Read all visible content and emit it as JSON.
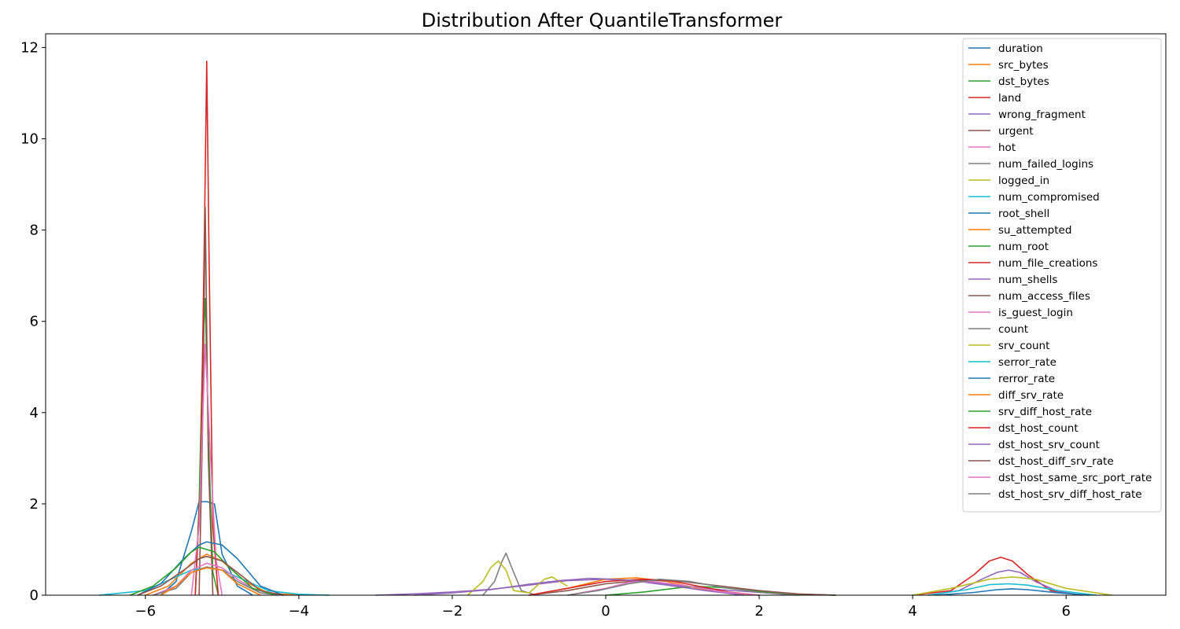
{
  "chart_data": {
    "type": "line",
    "title": "Distribution After QuantileTransformer",
    "xlabel": "",
    "ylabel": "",
    "xlim": [
      -7.3,
      7.3
    ],
    "ylim": [
      0,
      12.3
    ],
    "xticks": [
      -6,
      -4,
      -2,
      0,
      2,
      4,
      6
    ],
    "xtick_labels": [
      "−6",
      "−4",
      "−2",
      "0",
      "2",
      "4",
      "6"
    ],
    "yticks": [
      0,
      2,
      4,
      6,
      8,
      10,
      12
    ],
    "ytick_labels": [
      "0",
      "2",
      "4",
      "6",
      "8",
      "10",
      "12"
    ],
    "grid": false,
    "legend_position": "top-right",
    "series": [
      {
        "name": "duration",
        "color": "#1f77b4",
        "x": [
          -5.8,
          -5.6,
          -5.4,
          -5.3,
          -5.2,
          -5.1,
          -5.0,
          -4.8,
          -4.6
        ],
        "y": [
          0.0,
          0.3,
          1.4,
          2.05,
          2.05,
          2.0,
          0.9,
          0.2,
          0.0
        ]
      },
      {
        "name": "src_bytes",
        "color": "#ff7f0e",
        "x": [
          -6.0,
          -5.7,
          -5.4,
          -5.2,
          -5.0,
          -4.7,
          -4.4,
          -4.0
        ],
        "y": [
          0.0,
          0.2,
          0.7,
          0.9,
          0.75,
          0.3,
          0.05,
          0.0
        ]
      },
      {
        "name": "dst_bytes",
        "color": "#2ca02c",
        "x": [
          -5.35,
          -5.3,
          -5.25,
          -5.22,
          -5.18,
          -5.12,
          -5.05
        ],
        "y": [
          0.0,
          2.0,
          5.5,
          6.5,
          3.5,
          0.5,
          0.0
        ]
      },
      {
        "name": "land",
        "color": "#d62728",
        "x": [
          -5.35,
          -5.28,
          -5.23,
          -5.2,
          -5.17,
          -5.12,
          -5.05
        ],
        "y": [
          0.0,
          2.5,
          8.0,
          11.7,
          7.5,
          1.5,
          0.0
        ]
      },
      {
        "name": "wrong_fragment",
        "color": "#9467bd",
        "x": [
          -3.0,
          -2.5,
          -2.0,
          -1.5,
          -1.0,
          -0.5,
          0.0,
          0.5,
          1.0,
          1.5,
          2.0,
          2.5,
          3.0
        ],
        "y": [
          0.0,
          0.03,
          0.07,
          0.13,
          0.22,
          0.32,
          0.35,
          0.3,
          0.2,
          0.12,
          0.06,
          0.02,
          0.0
        ]
      },
      {
        "name": "urgent",
        "color": "#8c564b",
        "x": [
          -5.3,
          -5.25,
          -5.22,
          -5.18,
          -5.12
        ],
        "y": [
          0.0,
          4.0,
          8.5,
          3.0,
          0.0
        ]
      },
      {
        "name": "hot",
        "color": "#e377c2",
        "x": [
          -5.4,
          -5.3,
          -5.22,
          -5.15,
          -5.08,
          -5.0
        ],
        "y": [
          0.0,
          1.5,
          5.5,
          3.0,
          0.8,
          0.0
        ]
      },
      {
        "name": "num_failed_logins",
        "color": "#7f7f7f",
        "x": [
          -1.6,
          -1.45,
          -1.35,
          -1.3,
          -1.2,
          -1.1,
          -1.0,
          -0.9
        ],
        "y": [
          0.0,
          0.3,
          0.75,
          0.92,
          0.5,
          0.1,
          0.05,
          0.0
        ]
      },
      {
        "name": "logged_in",
        "color": "#bcbd22",
        "x": [
          -1.8,
          -1.6,
          -1.5,
          -1.4,
          -1.3,
          -1.2,
          -1.0,
          -0.8,
          -0.7,
          -0.5
        ],
        "y": [
          0.0,
          0.3,
          0.6,
          0.75,
          0.55,
          0.1,
          0.05,
          0.35,
          0.4,
          0.2
        ]
      },
      {
        "name": "num_compromised",
        "color": "#17becf",
        "x": [
          -6.6,
          -6.0,
          -5.6,
          -5.4,
          -5.2,
          -5.0,
          -4.8,
          -4.4,
          -4.0,
          -3.6
        ],
        "y": [
          0.0,
          0.1,
          0.4,
          0.55,
          0.6,
          0.55,
          0.4,
          0.1,
          0.02,
          0.0
        ]
      },
      {
        "name": "root_shell",
        "color": "#1f77b4",
        "x": [
          -6.1,
          -5.8,
          -5.5,
          -5.3,
          -5.2,
          -5.0,
          -4.8,
          -4.5,
          -4.2
        ],
        "y": [
          0.0,
          0.25,
          0.8,
          1.1,
          1.17,
          1.1,
          0.8,
          0.2,
          0.0
        ]
      },
      {
        "name": "su_attempted",
        "color": "#ff7f0e",
        "x": [
          -1.0,
          -0.5,
          0.0,
          0.4,
          0.8,
          1.2,
          1.6,
          2.0
        ],
        "y": [
          0.0,
          0.15,
          0.35,
          0.38,
          0.3,
          0.15,
          0.05,
          0.0
        ]
      },
      {
        "name": "num_root",
        "color": "#2ca02c",
        "x": [
          0.0,
          0.5,
          1.0,
          1.2,
          1.5,
          2.0,
          2.5,
          3.0
        ],
        "y": [
          0.0,
          0.07,
          0.17,
          0.19,
          0.17,
          0.08,
          0.02,
          0.0
        ]
      },
      {
        "name": "num_file_creations",
        "color": "#d62728",
        "x": [
          4.0,
          4.5,
          4.8,
          5.0,
          5.15,
          5.3,
          5.5,
          5.8,
          6.2
        ],
        "y": [
          0.0,
          0.1,
          0.45,
          0.75,
          0.83,
          0.75,
          0.45,
          0.1,
          0.0
        ]
      },
      {
        "name": "num_shells",
        "color": "#9467bd",
        "x": [
          4.2,
          4.6,
          4.9,
          5.1,
          5.25,
          5.4,
          5.6,
          5.9,
          6.2
        ],
        "y": [
          0.0,
          0.1,
          0.35,
          0.5,
          0.55,
          0.5,
          0.3,
          0.08,
          0.0
        ]
      },
      {
        "name": "num_access_files",
        "color": "#8c564b",
        "x": [
          -1.0,
          -0.5,
          0.0,
          0.5,
          1.0,
          1.5,
          2.0,
          2.5,
          3.0
        ],
        "y": [
          0.0,
          0.1,
          0.25,
          0.33,
          0.3,
          0.2,
          0.1,
          0.03,
          0.0
        ]
      },
      {
        "name": "is_guest_login",
        "color": "#e377c2",
        "x": [
          -5.9,
          -5.6,
          -5.4,
          -5.2,
          -5.0,
          -4.8,
          -4.5,
          -4.2
        ],
        "y": [
          0.0,
          0.2,
          0.55,
          0.7,
          0.6,
          0.35,
          0.05,
          0.0
        ]
      },
      {
        "name": "count",
        "color": "#7f7f7f",
        "x": [
          -5.9,
          -5.6,
          -5.4,
          -5.2,
          -5.0,
          -4.8,
          -4.5,
          -4.2
        ],
        "y": [
          0.0,
          0.15,
          0.5,
          0.62,
          0.55,
          0.3,
          0.05,
          0.0
        ]
      },
      {
        "name": "srv_count",
        "color": "#bcbd22",
        "x": [
          4.0,
          4.5,
          5.0,
          5.3,
          5.6,
          6.0,
          6.6
        ],
        "y": [
          0.0,
          0.15,
          0.35,
          0.4,
          0.35,
          0.15,
          0.0
        ]
      },
      {
        "name": "serror_rate",
        "color": "#17becf",
        "x": [
          4.2,
          4.7,
          5.0,
          5.25,
          5.5,
          5.9,
          6.4
        ],
        "y": [
          0.0,
          0.12,
          0.23,
          0.25,
          0.22,
          0.1,
          0.0
        ]
      },
      {
        "name": "rerror_rate",
        "color": "#1f77b4",
        "x": [
          4.3,
          4.8,
          5.1,
          5.3,
          5.5,
          5.9,
          6.3
        ],
        "y": [
          0.0,
          0.06,
          0.12,
          0.14,
          0.12,
          0.05,
          0.0
        ]
      },
      {
        "name": "diff_srv_rate",
        "color": "#ff7f0e",
        "x": [
          -5.8,
          -5.6,
          -5.4,
          -5.2,
          -5.0,
          -4.8,
          -4.5
        ],
        "y": [
          0.0,
          0.2,
          0.5,
          0.6,
          0.55,
          0.25,
          0.0
        ]
      },
      {
        "name": "srv_diff_host_rate",
        "color": "#2ca02c",
        "x": [
          -6.2,
          -5.9,
          -5.6,
          -5.4,
          -5.3,
          -5.1,
          -4.9,
          -4.6,
          -4.3
        ],
        "y": [
          0.0,
          0.2,
          0.6,
          0.95,
          1.05,
          0.95,
          0.6,
          0.15,
          0.0
        ]
      },
      {
        "name": "dst_host_count",
        "color": "#d62728",
        "x": [
          -1.0,
          -0.5,
          0.0,
          0.5,
          0.8,
          1.2,
          1.6,
          2.0
        ],
        "y": [
          0.0,
          0.15,
          0.3,
          0.35,
          0.33,
          0.2,
          0.07,
          0.0
        ]
      },
      {
        "name": "dst_host_srv_count",
        "color": "#9467bd",
        "x": [
          -2.5,
          -2.0,
          -1.5,
          -1.0,
          -0.6,
          -0.2,
          0.3,
          0.8,
          1.3,
          1.8
        ],
        "y": [
          0.0,
          0.05,
          0.12,
          0.24,
          0.32,
          0.37,
          0.33,
          0.22,
          0.1,
          0.0
        ]
      },
      {
        "name": "dst_host_diff_srv_rate",
        "color": "#8c564b",
        "x": [
          -6.1,
          -5.8,
          -5.5,
          -5.3,
          -5.2,
          -5.0,
          -4.8,
          -4.5,
          -4.2
        ],
        "y": [
          0.0,
          0.2,
          0.55,
          0.8,
          0.85,
          0.75,
          0.5,
          0.1,
          0.0
        ]
      },
      {
        "name": "dst_host_same_src_port_rate",
        "color": "#e377c2",
        "x": [
          -0.5,
          0.0,
          0.3,
          0.6,
          1.0,
          1.5,
          2.0
        ],
        "y": [
          0.0,
          0.15,
          0.28,
          0.3,
          0.22,
          0.08,
          0.0
        ]
      },
      {
        "name": "dst_host_srv_diff_host_rate",
        "color": "#7f7f7f",
        "x": [
          -0.5,
          -0.1,
          0.3,
          0.7,
          1.1,
          1.5,
          2.0,
          2.5
        ],
        "y": [
          0.0,
          0.1,
          0.25,
          0.35,
          0.3,
          0.18,
          0.06,
          0.0
        ]
      }
    ]
  }
}
